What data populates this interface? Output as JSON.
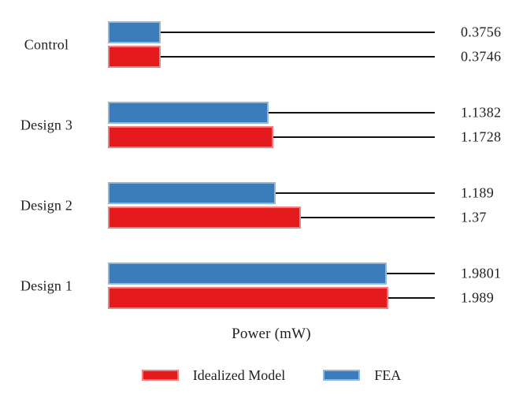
{
  "chart_data": {
    "type": "bar",
    "orientation": "horizontal",
    "title": "",
    "xlabel": "Power (mW)",
    "ylabel": "",
    "categories": [
      "Control",
      "Design 3",
      "Design 2",
      "Design 1"
    ],
    "series": [
      {
        "name": "FEA",
        "color": "#3A7CBA",
        "values": [
          0.3756,
          1.1382,
          1.189,
          1.9801
        ],
        "labels": [
          "0.3756",
          "1.1382",
          "1.189",
          "1.9801"
        ]
      },
      {
        "name": "Idealized Model",
        "color": "#E41A1D",
        "values": [
          0.3746,
          1.1728,
          1.37,
          1.989
        ],
        "labels": [
          "0.3746",
          "1.1728",
          "1.37",
          "1.989"
        ]
      }
    ],
    "legend": [
      {
        "label": "Idealized Model",
        "color": "#E41A1D"
      },
      {
        "label": "FEA",
        "color": "#3A7CBA"
      }
    ],
    "xlim": [
      0,
      2.32
    ],
    "grid": false,
    "axis_lines": false,
    "legend_position": "bottom",
    "value_labels": "right column connected by black leader lines"
  },
  "colors": {
    "fea_blue": "#3A7CBA",
    "idealized_red": "#E41A1D",
    "leader_line": "#111111",
    "text": "#1F1F1F",
    "background": "#FFFFFF"
  }
}
